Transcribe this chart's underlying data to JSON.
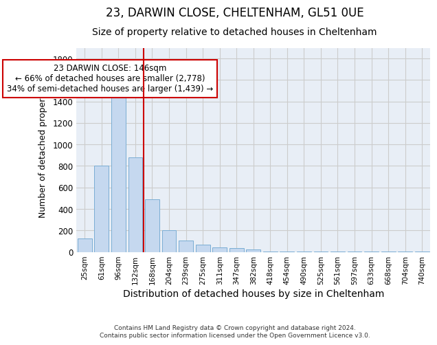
{
  "title1": "23, DARWIN CLOSE, CHELTENHAM, GL51 0UE",
  "title2": "Size of property relative to detached houses in Cheltenham",
  "xlabel": "Distribution of detached houses by size in Cheltenham",
  "ylabel": "Number of detached properties",
  "footnote": "Contains HM Land Registry data © Crown copyright and database right 2024.\nContains public sector information licensed under the Open Government Licence v3.0.",
  "categories": [
    "25sqm",
    "61sqm",
    "96sqm",
    "132sqm",
    "168sqm",
    "204sqm",
    "239sqm",
    "275sqm",
    "311sqm",
    "347sqm",
    "382sqm",
    "418sqm",
    "454sqm",
    "490sqm",
    "525sqm",
    "561sqm",
    "597sqm",
    "633sqm",
    "668sqm",
    "704sqm",
    "740sqm"
  ],
  "values": [
    125,
    800,
    1475,
    880,
    490,
    205,
    105,
    65,
    45,
    35,
    22,
    3,
    2,
    2,
    1,
    1,
    1,
    1,
    1,
    1,
    1
  ],
  "bar_color": "#c5d8ef",
  "bar_edge_color": "#7aadd4",
  "vline_x": 3.5,
  "vline_color": "#cc0000",
  "annotation_text": "23 DARWIN CLOSE: 146sqm\n← 66% of detached houses are smaller (2,778)\n34% of semi-detached houses are larger (1,439) →",
  "annotation_box_color": "#cc0000",
  "ylim": [
    0,
    1900
  ],
  "yticks": [
    0,
    200,
    400,
    600,
    800,
    1000,
    1200,
    1400,
    1600,
    1800
  ],
  "grid_color": "#cccccc",
  "bg_color": "#e8eef6",
  "title1_fontsize": 12,
  "title2_fontsize": 10,
  "xlabel_fontsize": 10,
  "ylabel_fontsize": 9,
  "ann_fontsize": 8.5
}
